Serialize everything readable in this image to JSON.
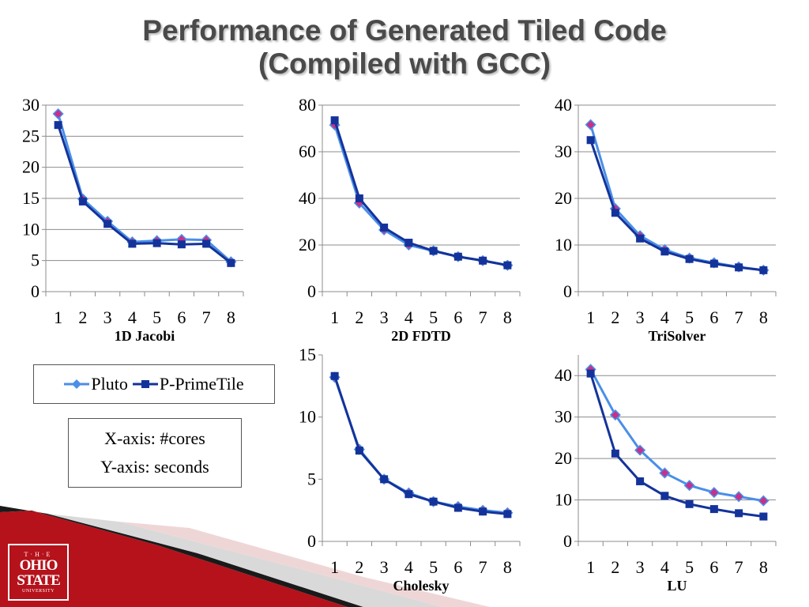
{
  "title": {
    "line1": "Performance of Generated Tiled Code",
    "line2": "(Compiled with GCC)"
  },
  "colors": {
    "pluto": "#4a8fe8",
    "pprimetile": "#14339a",
    "pluto_marker_fill": "#c8308a",
    "grid": "#8c8c8c",
    "banner_red": "#b5121b"
  },
  "legend": {
    "series": [
      {
        "name": "Pluto",
        "color": "#4a8fe8",
        "marker": "diamond"
      },
      {
        "name": "P-PrimeTile",
        "color": "#14339a",
        "marker": "square"
      }
    ]
  },
  "note": {
    "line1": "X-axis: #cores",
    "line2": "Y-axis: seconds"
  },
  "logo": {
    "line1": "T·H·E",
    "line2": "OHIO",
    "line3": "STATE",
    "line4": "UNIVERSITY"
  },
  "chart_data": [
    {
      "type": "line",
      "xlabel": "1D Jacobi",
      "ylabel": "",
      "categories": [
        "1",
        "2",
        "3",
        "4",
        "5",
        "6",
        "7",
        "8"
      ],
      "ylim": [
        0,
        30
      ],
      "yticks": [
        0,
        5,
        10,
        15,
        20,
        25,
        30
      ],
      "grid": true,
      "series": [
        {
          "name": "Pluto",
          "values": [
            28.6,
            14.9,
            11.3,
            8.0,
            8.2,
            8.4,
            8.3,
            4.8
          ]
        },
        {
          "name": "P-PrimeTile",
          "values": [
            26.8,
            14.5,
            10.9,
            7.7,
            7.8,
            7.6,
            7.7,
            4.6
          ]
        }
      ]
    },
    {
      "type": "line",
      "xlabel": "2D FDTD",
      "ylabel": "",
      "categories": [
        "1",
        "2",
        "3",
        "4",
        "5",
        "6",
        "7",
        "8"
      ],
      "ylim": [
        0,
        80
      ],
      "yticks": [
        0,
        20,
        40,
        60,
        80
      ],
      "grid": true,
      "series": [
        {
          "name": "Pluto",
          "values": [
            71.5,
            38.0,
            26.5,
            20.0,
            17.5,
            15.0,
            13.3,
            11.3
          ]
        },
        {
          "name": "P-PrimeTile",
          "values": [
            73.5,
            40.0,
            27.5,
            21.0,
            17.5,
            15.0,
            13.3,
            11.3
          ]
        }
      ]
    },
    {
      "type": "line",
      "xlabel": "TriSolver",
      "ylabel": "",
      "categories": [
        "1",
        "2",
        "3",
        "4",
        "5",
        "6",
        "7",
        "8"
      ],
      "ylim": [
        0,
        40
      ],
      "yticks": [
        0,
        10,
        20,
        30,
        40
      ],
      "grid": true,
      "series": [
        {
          "name": "Pluto",
          "values": [
            35.8,
            17.8,
            12.0,
            9.0,
            7.2,
            6.2,
            5.3,
            4.6
          ]
        },
        {
          "name": "P-PrimeTile",
          "values": [
            32.5,
            16.9,
            11.4,
            8.6,
            7.0,
            6.0,
            5.2,
            4.6
          ]
        }
      ]
    },
    {
      "type": "line",
      "xlabel": "Cholesky",
      "ylabel": "",
      "categories": [
        "1",
        "2",
        "3",
        "4",
        "5",
        "6",
        "7",
        "8"
      ],
      "ylim": [
        0,
        15
      ],
      "yticks": [
        0,
        5,
        10,
        15
      ],
      "grid": false,
      "series": [
        {
          "name": "Pluto",
          "values": [
            13.2,
            7.4,
            5.0,
            3.9,
            3.2,
            2.8,
            2.5,
            2.3
          ]
        },
        {
          "name": "P-PrimeTile",
          "values": [
            13.3,
            7.3,
            5.0,
            3.8,
            3.2,
            2.7,
            2.4,
            2.2
          ]
        }
      ]
    },
    {
      "type": "line",
      "xlabel": "LU",
      "ylabel": "",
      "categories": [
        "1",
        "2",
        "3",
        "4",
        "5",
        "6",
        "7",
        "8"
      ],
      "ylim": [
        0,
        45
      ],
      "yticks": [
        0,
        10,
        20,
        30,
        40
      ],
      "grid": true,
      "series": [
        {
          "name": "Pluto",
          "values": [
            41.5,
            30.5,
            22.0,
            16.5,
            13.5,
            11.8,
            10.8,
            9.8
          ]
        },
        {
          "name": "P-PrimeTile",
          "values": [
            40.5,
            21.2,
            14.5,
            11.0,
            9.0,
            7.8,
            6.8,
            6.0
          ]
        }
      ]
    }
  ]
}
